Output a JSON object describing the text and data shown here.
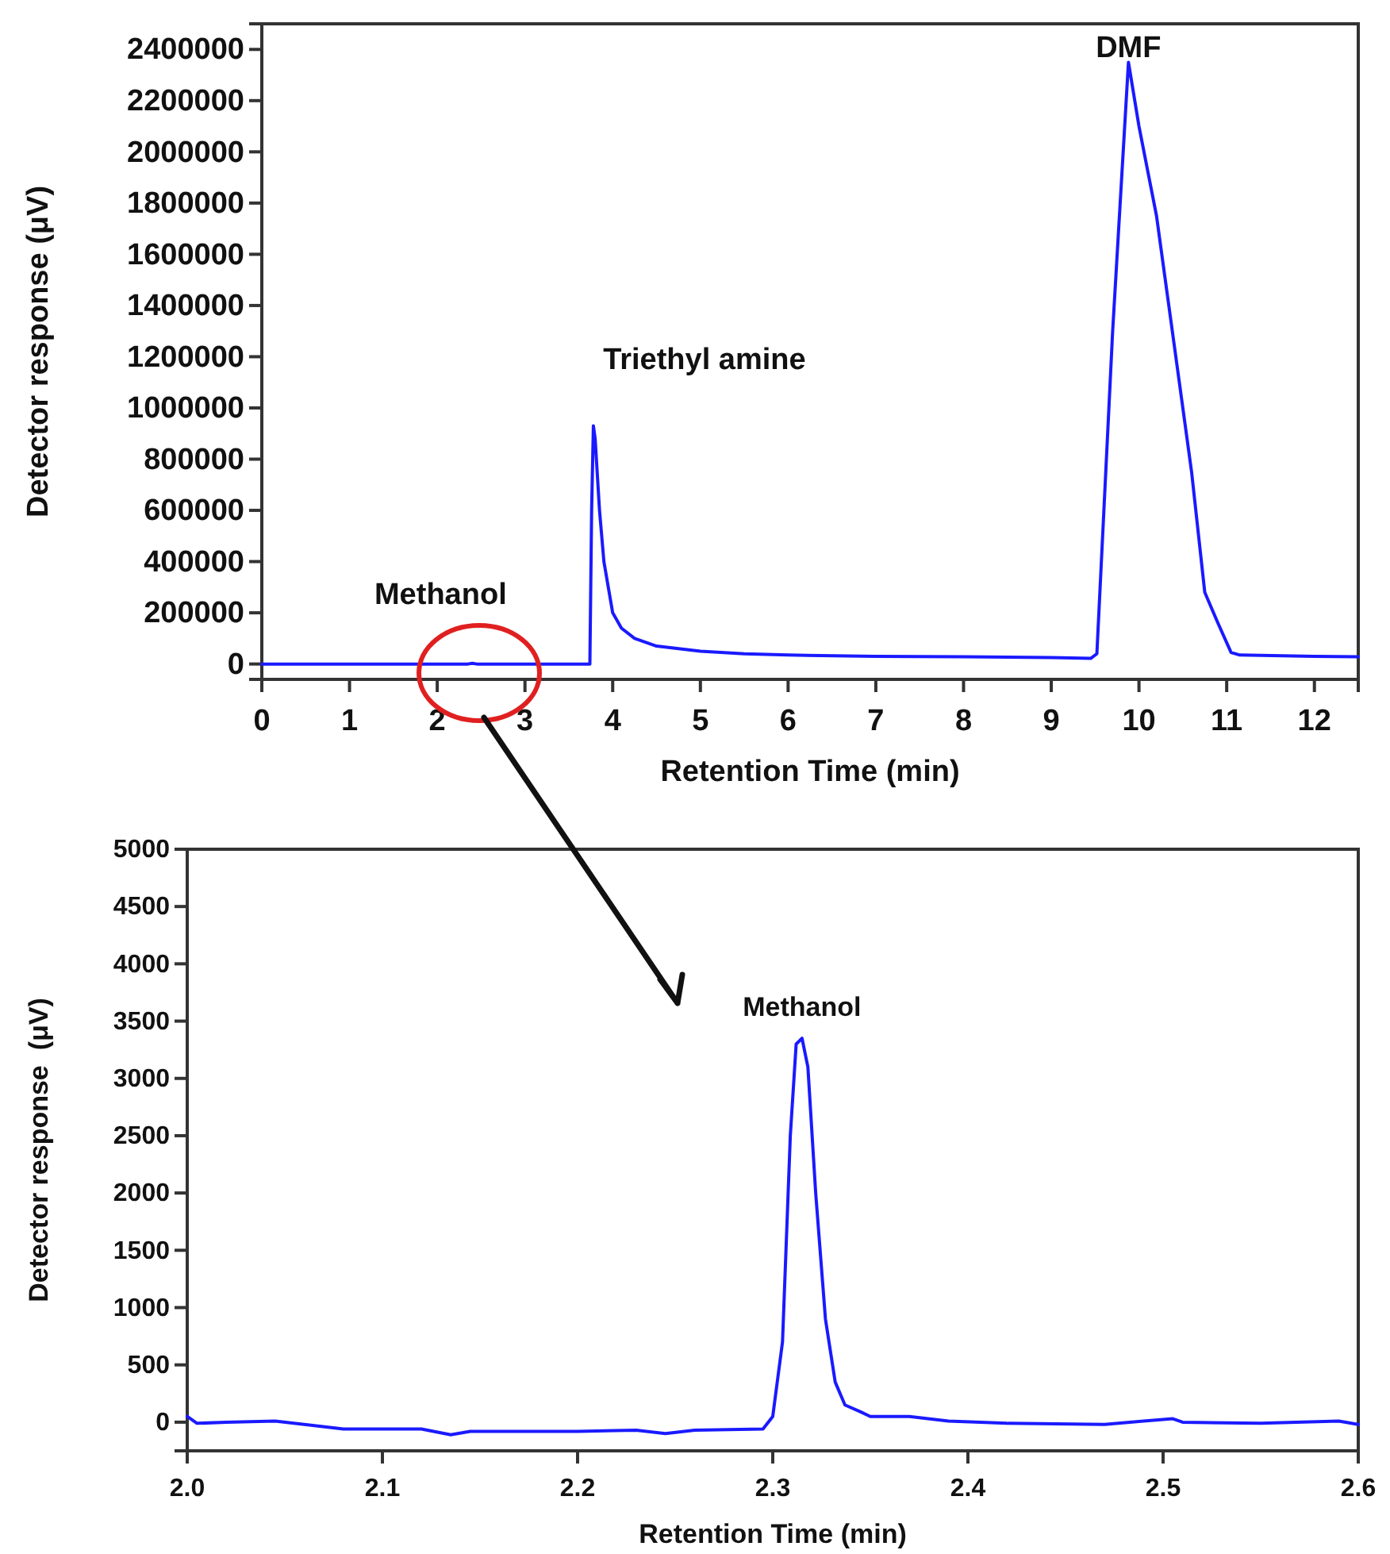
{
  "chart_data": [
    {
      "type": "line",
      "xlabel": "Retention Time (min)",
      "ylabel": "Detector response (μV)",
      "xlim": [
        0,
        12.5
      ],
      "ylim": [
        -60000,
        2500000
      ],
      "xticks": [
        0,
        1,
        2,
        3,
        4,
        5,
        6,
        7,
        8,
        9,
        10,
        11,
        12
      ],
      "yticks": [
        0,
        200000,
        400000,
        600000,
        800000,
        1000000,
        1200000,
        1400000,
        1600000,
        1800000,
        2000000,
        2200000,
        2400000
      ],
      "grid": false,
      "annotations": [
        {
          "text": "Methanol",
          "x": 2.4,
          "y": 0
        },
        {
          "text": "Triethyl amine",
          "x": 3.78,
          "y": 930000
        },
        {
          "text": "DMF",
          "x": 9.88,
          "y": 2350000
        }
      ],
      "series": [
        {
          "color": "#1a1aff",
          "x": [
            0,
            2.35,
            2.4,
            2.45,
            3.74,
            3.76,
            3.78,
            3.8,
            3.85,
            3.9,
            4.0,
            4.1,
            4.25,
            4.5,
            5.0,
            5.5,
            6.0,
            7.0,
            8.0,
            9.0,
            9.45,
            9.52,
            9.55,
            9.7,
            9.88,
            10.0,
            10.2,
            10.4,
            10.6,
            10.75,
            10.9,
            11.05,
            11.15,
            12.0,
            12.5
          ],
          "values": [
            0,
            0,
            3000,
            0,
            0,
            600000,
            930000,
            880000,
            600000,
            400000,
            200000,
            140000,
            100000,
            70000,
            50000,
            40000,
            35000,
            30000,
            28000,
            25000,
            22000,
            40000,
            250000,
            1300000,
            2350000,
            2100000,
            1750000,
            1250000,
            750000,
            280000,
            160000,
            45000,
            35000,
            30000,
            28000
          ]
        }
      ]
    },
    {
      "type": "line",
      "xlabel": "Retention Time (min)",
      "ylabel": "Detector response  (μV)",
      "xlim": [
        2.0,
        2.6
      ],
      "ylim": [
        -250,
        5000
      ],
      "xticks": [
        {
          "value": 2.0,
          "label": "2.0"
        },
        2.1,
        2.2,
        2.3,
        2.4,
        2.5,
        2.6
      ],
      "yticks": [
        0,
        500,
        1000,
        1500,
        2000,
        2500,
        3000,
        3500,
        4000,
        4500,
        5000
      ],
      "grid": false,
      "annotations": [
        {
          "text": "Methanol",
          "x": 2.315,
          "y": 3350
        }
      ],
      "series": [
        {
          "color": "#1a1aff",
          "x": [
            2.0,
            2.005,
            2.02,
            2.045,
            2.06,
            2.08,
            2.12,
            2.135,
            2.145,
            2.2,
            2.23,
            2.245,
            2.26,
            2.295,
            2.3,
            2.305,
            2.309,
            2.312,
            2.315,
            2.318,
            2.322,
            2.327,
            2.332,
            2.337,
            2.345,
            2.35,
            2.37,
            2.39,
            2.42,
            2.47,
            2.49,
            2.505,
            2.51,
            2.55,
            2.59,
            2.6
          ],
          "values": [
            50,
            -10,
            0,
            10,
            -20,
            -60,
            -60,
            -110,
            -80,
            -80,
            -70,
            -100,
            -70,
            -60,
            50,
            700,
            2500,
            3300,
            3350,
            3100,
            2000,
            900,
            350,
            150,
            90,
            50,
            50,
            10,
            -10,
            -20,
            10,
            30,
            0,
            -10,
            10,
            -20
          ]
        }
      ]
    }
  ]
}
